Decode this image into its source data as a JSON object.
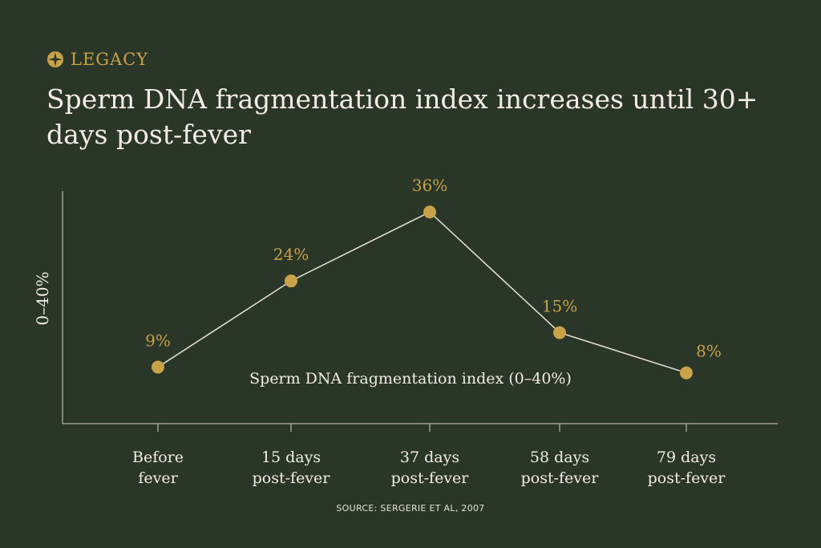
{
  "brand": {
    "name": "LEGACY",
    "icon": "legacy-logo-icon",
    "color": "#c9a24a"
  },
  "title": "Sperm DNA fragmentation index increases until 30+ days post-fever",
  "source": "SOURCE: SERGERIE ET AL, 2007",
  "colors": {
    "background": "#2a3627",
    "text": "#f2ede2",
    "accent": "#c9a24a",
    "line": "#e8e3d8"
  },
  "chart_data": {
    "type": "line",
    "title": "Sperm DNA fragmentation index increases until 30+ days post-fever",
    "ylabel": "0–40%",
    "ylim": [
      0,
      40
    ],
    "grid": false,
    "categories": [
      [
        "Before",
        "fever"
      ],
      [
        "15 days",
        "post-fever"
      ],
      [
        "37 days",
        "post-fever"
      ],
      [
        "58 days",
        "post-fever"
      ],
      [
        "79 days",
        "post-fever"
      ]
    ],
    "series": [
      {
        "name": "Sperm DNA fragmentation index (0–40%)",
        "values": [
          9,
          24,
          36,
          15,
          8
        ],
        "labels": [
          "9%",
          "24%",
          "36%",
          "15%",
          "8%"
        ]
      }
    ]
  }
}
